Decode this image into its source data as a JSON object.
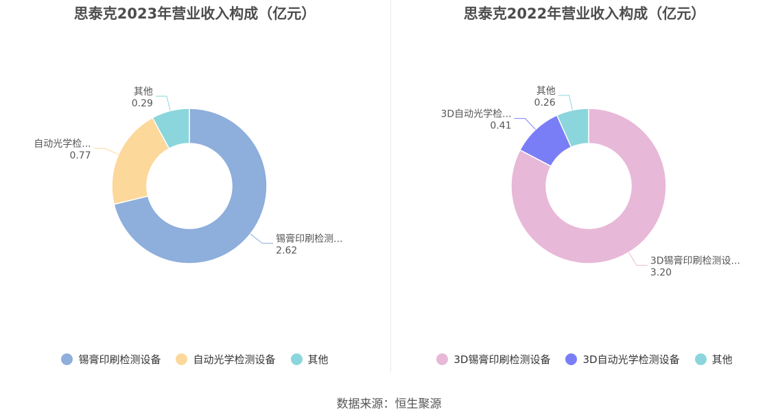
{
  "chart_data": [
    {
      "type": "pie",
      "title": "思泰克2023年营业收入构成（亿元）",
      "categories": [
        "锡膏印刷检测设备",
        "自动光学检测设备",
        "其他"
      ],
      "values": [
        2.62,
        0.77,
        0.29
      ],
      "value_labels": [
        "2.62",
        "0.77",
        "0.29"
      ],
      "slice_labels": [
        "锡膏印刷检测...",
        "自动光学检...",
        "其他"
      ],
      "colors": [
        "#8eaedb",
        "#fdd89b",
        "#8ad6dc"
      ],
      "legend_position": "bottom"
    },
    {
      "type": "pie",
      "title": "思泰克2022年营业收入构成（亿元）",
      "categories": [
        "3D锡膏印刷检测设备",
        "3D自动光学检测设备",
        "其他"
      ],
      "values": [
        3.2,
        0.41,
        0.26
      ],
      "value_labels": [
        "3.20",
        "0.41",
        "0.26"
      ],
      "slice_labels": [
        "3D锡膏印刷检测设...",
        "3D自动光学检...",
        "其他"
      ],
      "colors": [
        "#e8b8d8",
        "#7a7ef6",
        "#8ad6dc"
      ],
      "legend_position": "bottom"
    }
  ],
  "source": "数据来源：恒生聚源"
}
